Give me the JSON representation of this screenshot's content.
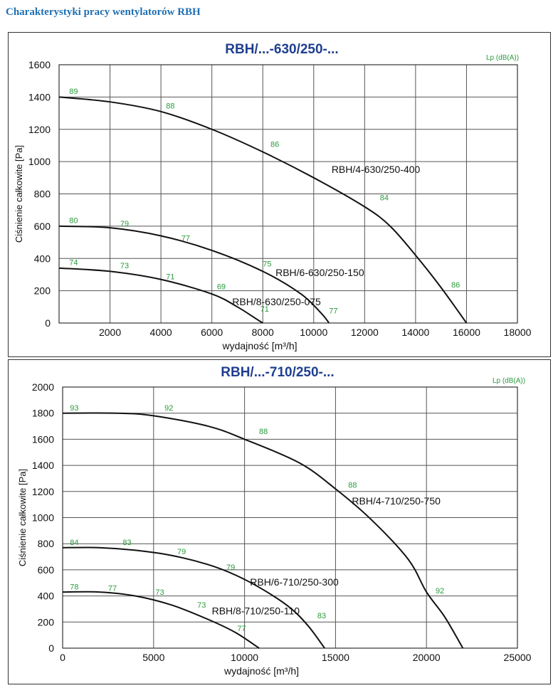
{
  "page": {
    "title": "Charakterystyki pracy wentylatorów RBH"
  },
  "colors": {
    "title": "#1f6fb2",
    "chart_title": "#1f3f8f",
    "green": "#2a9a3c",
    "grid": "#555555",
    "curve": "#111111"
  },
  "chart_data": [
    {
      "type": "line",
      "title": "RBH/...-630/250-...",
      "lp_label": "Lp (dB(A))",
      "xlabel": "wydajność  [m³/h]",
      "ylabel": "Ciśnienie całkowite [Pa]",
      "xlim": [
        0,
        18000
      ],
      "ylim": [
        0,
        1600
      ],
      "xticks": [
        2000,
        4000,
        6000,
        8000,
        10000,
        12000,
        14000,
        16000,
        18000
      ],
      "xtick_labels": [
        "2000",
        "4000",
        "6000",
        "8000",
        "10000",
        "12000",
        "14000",
        "16000",
        "18000"
      ],
      "yticks": [
        0,
        200,
        400,
        600,
        800,
        1000,
        1200,
        1400,
        1600
      ],
      "ytick_labels": [
        "0",
        "200",
        "400",
        "600",
        "800",
        "1000",
        "1200",
        "1400",
        "1600"
      ],
      "series": [
        {
          "name": "RBH/4-630/250-400",
          "x": [
            0,
            2000,
            4000,
            6000,
            8000,
            10000,
            12000,
            13000,
            14000,
            15000,
            16000
          ],
          "y": [
            1400,
            1370,
            1310,
            1200,
            1060,
            900,
            720,
            600,
            420,
            220,
            0
          ],
          "label_at": [
            10700,
            930
          ],
          "lp_points": [
            {
              "label": "89",
              "x": 400,
              "y": 1420
            },
            {
              "label": "88",
              "x": 4200,
              "y": 1330
            },
            {
              "label": "86",
              "x": 8300,
              "y": 1090
            },
            {
              "label": "84",
              "x": 12600,
              "y": 760
            },
            {
              "label": "86",
              "x": 15400,
              "y": 220
            }
          ]
        },
        {
          "name": "RBH/6-630/250-150",
          "x": [
            0,
            2000,
            4000,
            6000,
            8000,
            9500,
            10300,
            10600
          ],
          "y": [
            600,
            590,
            540,
            450,
            320,
            180,
            60,
            0
          ],
          "label_at": [
            8500,
            290
          ],
          "lp_points": [
            {
              "label": "80",
              "x": 400,
              "y": 620
            },
            {
              "label": "79",
              "x": 2400,
              "y": 600
            },
            {
              "label": "77",
              "x": 4800,
              "y": 510
            },
            {
              "label": "75",
              "x": 8000,
              "y": 350
            },
            {
              "label": "77",
              "x": 10600,
              "y": 60
            }
          ]
        },
        {
          "name": "RBH/8-630/250-075",
          "x": [
            0,
            2000,
            4000,
            6000,
            7000,
            7700,
            8000
          ],
          "y": [
            340,
            320,
            270,
            180,
            100,
            30,
            0
          ],
          "label_at": [
            6800,
            110
          ],
          "lp_points": [
            {
              "label": "74",
              "x": 400,
              "y": 360
            },
            {
              "label": "73",
              "x": 2400,
              "y": 340
            },
            {
              "label": "71",
              "x": 4200,
              "y": 270
            },
            {
              "label": "69",
              "x": 6200,
              "y": 210
            },
            {
              "label": "71",
              "x": 7900,
              "y": 70
            }
          ]
        }
      ]
    },
    {
      "type": "line",
      "title": "RBH/...-710/250-...",
      "lp_label": "Lp (dB(A))",
      "xlabel": "wydajność  [m³/h]",
      "ylabel": "Ciśnienie całkowite [Pa]",
      "xlim": [
        0,
        25000
      ],
      "ylim": [
        0,
        2000
      ],
      "xticks": [
        0,
        5000,
        10000,
        15000,
        20000,
        25000
      ],
      "xtick_labels": [
        "0",
        "5000",
        "10000",
        "15000",
        "20000",
        "25000"
      ],
      "yticks": [
        0,
        200,
        400,
        600,
        800,
        1000,
        1200,
        1400,
        1600,
        1800,
        2000
      ],
      "ytick_labels": [
        "0",
        "200",
        "400",
        "600",
        "800",
        "1000",
        "1200",
        "1400",
        "1600",
        "1800",
        "2000"
      ],
      "series": [
        {
          "name": "RBH/4-710/250-750",
          "x": [
            0,
            3000,
            5000,
            8000,
            10000,
            13000,
            15000,
            17000,
            19000,
            20000,
            21000,
            22000
          ],
          "y": [
            1800,
            1800,
            1780,
            1700,
            1600,
            1420,
            1220,
            980,
            680,
            430,
            240,
            0
          ],
          "label_at": [
            15900,
            1100
          ],
          "lp_points": [
            {
              "label": "93",
              "x": 400,
              "y": 1820
            },
            {
              "label": "92",
              "x": 5600,
              "y": 1820
            },
            {
              "label": "88",
              "x": 10800,
              "y": 1640
            },
            {
              "label": "88",
              "x": 15700,
              "y": 1230
            },
            {
              "label": "92",
              "x": 20500,
              "y": 420
            }
          ]
        },
        {
          "name": "RBH/6-710/250-300",
          "x": [
            0,
            2000,
            4000,
            6000,
            8000,
            9500,
            11000,
            12500,
            13500,
            14400
          ],
          "y": [
            770,
            770,
            750,
            710,
            640,
            560,
            450,
            310,
            170,
            0
          ],
          "label_at": [
            10300,
            480
          ],
          "lp_points": [
            {
              "label": "84",
              "x": 400,
              "y": 790
            },
            {
              "label": "83",
              "x": 3300,
              "y": 790
            },
            {
              "label": "79",
              "x": 6300,
              "y": 720
            },
            {
              "label": "79",
              "x": 9000,
              "y": 600
            },
            {
              "label": "83",
              "x": 14000,
              "y": 230
            }
          ]
        },
        {
          "name": "RBH/8-710/250-110",
          "x": [
            0,
            2000,
            4000,
            6000,
            8000,
            9500,
            10800
          ],
          "y": [
            430,
            430,
            400,
            330,
            220,
            120,
            0
          ],
          "label_at": [
            8200,
            260
          ],
          "lp_points": [
            {
              "label": "78",
              "x": 400,
              "y": 450
            },
            {
              "label": "77",
              "x": 2500,
              "y": 440
            },
            {
              "label": "73",
              "x": 5100,
              "y": 410
            },
            {
              "label": "73",
              "x": 7400,
              "y": 310
            },
            {
              "label": "77",
              "x": 9600,
              "y": 130
            }
          ]
        }
      ]
    }
  ]
}
